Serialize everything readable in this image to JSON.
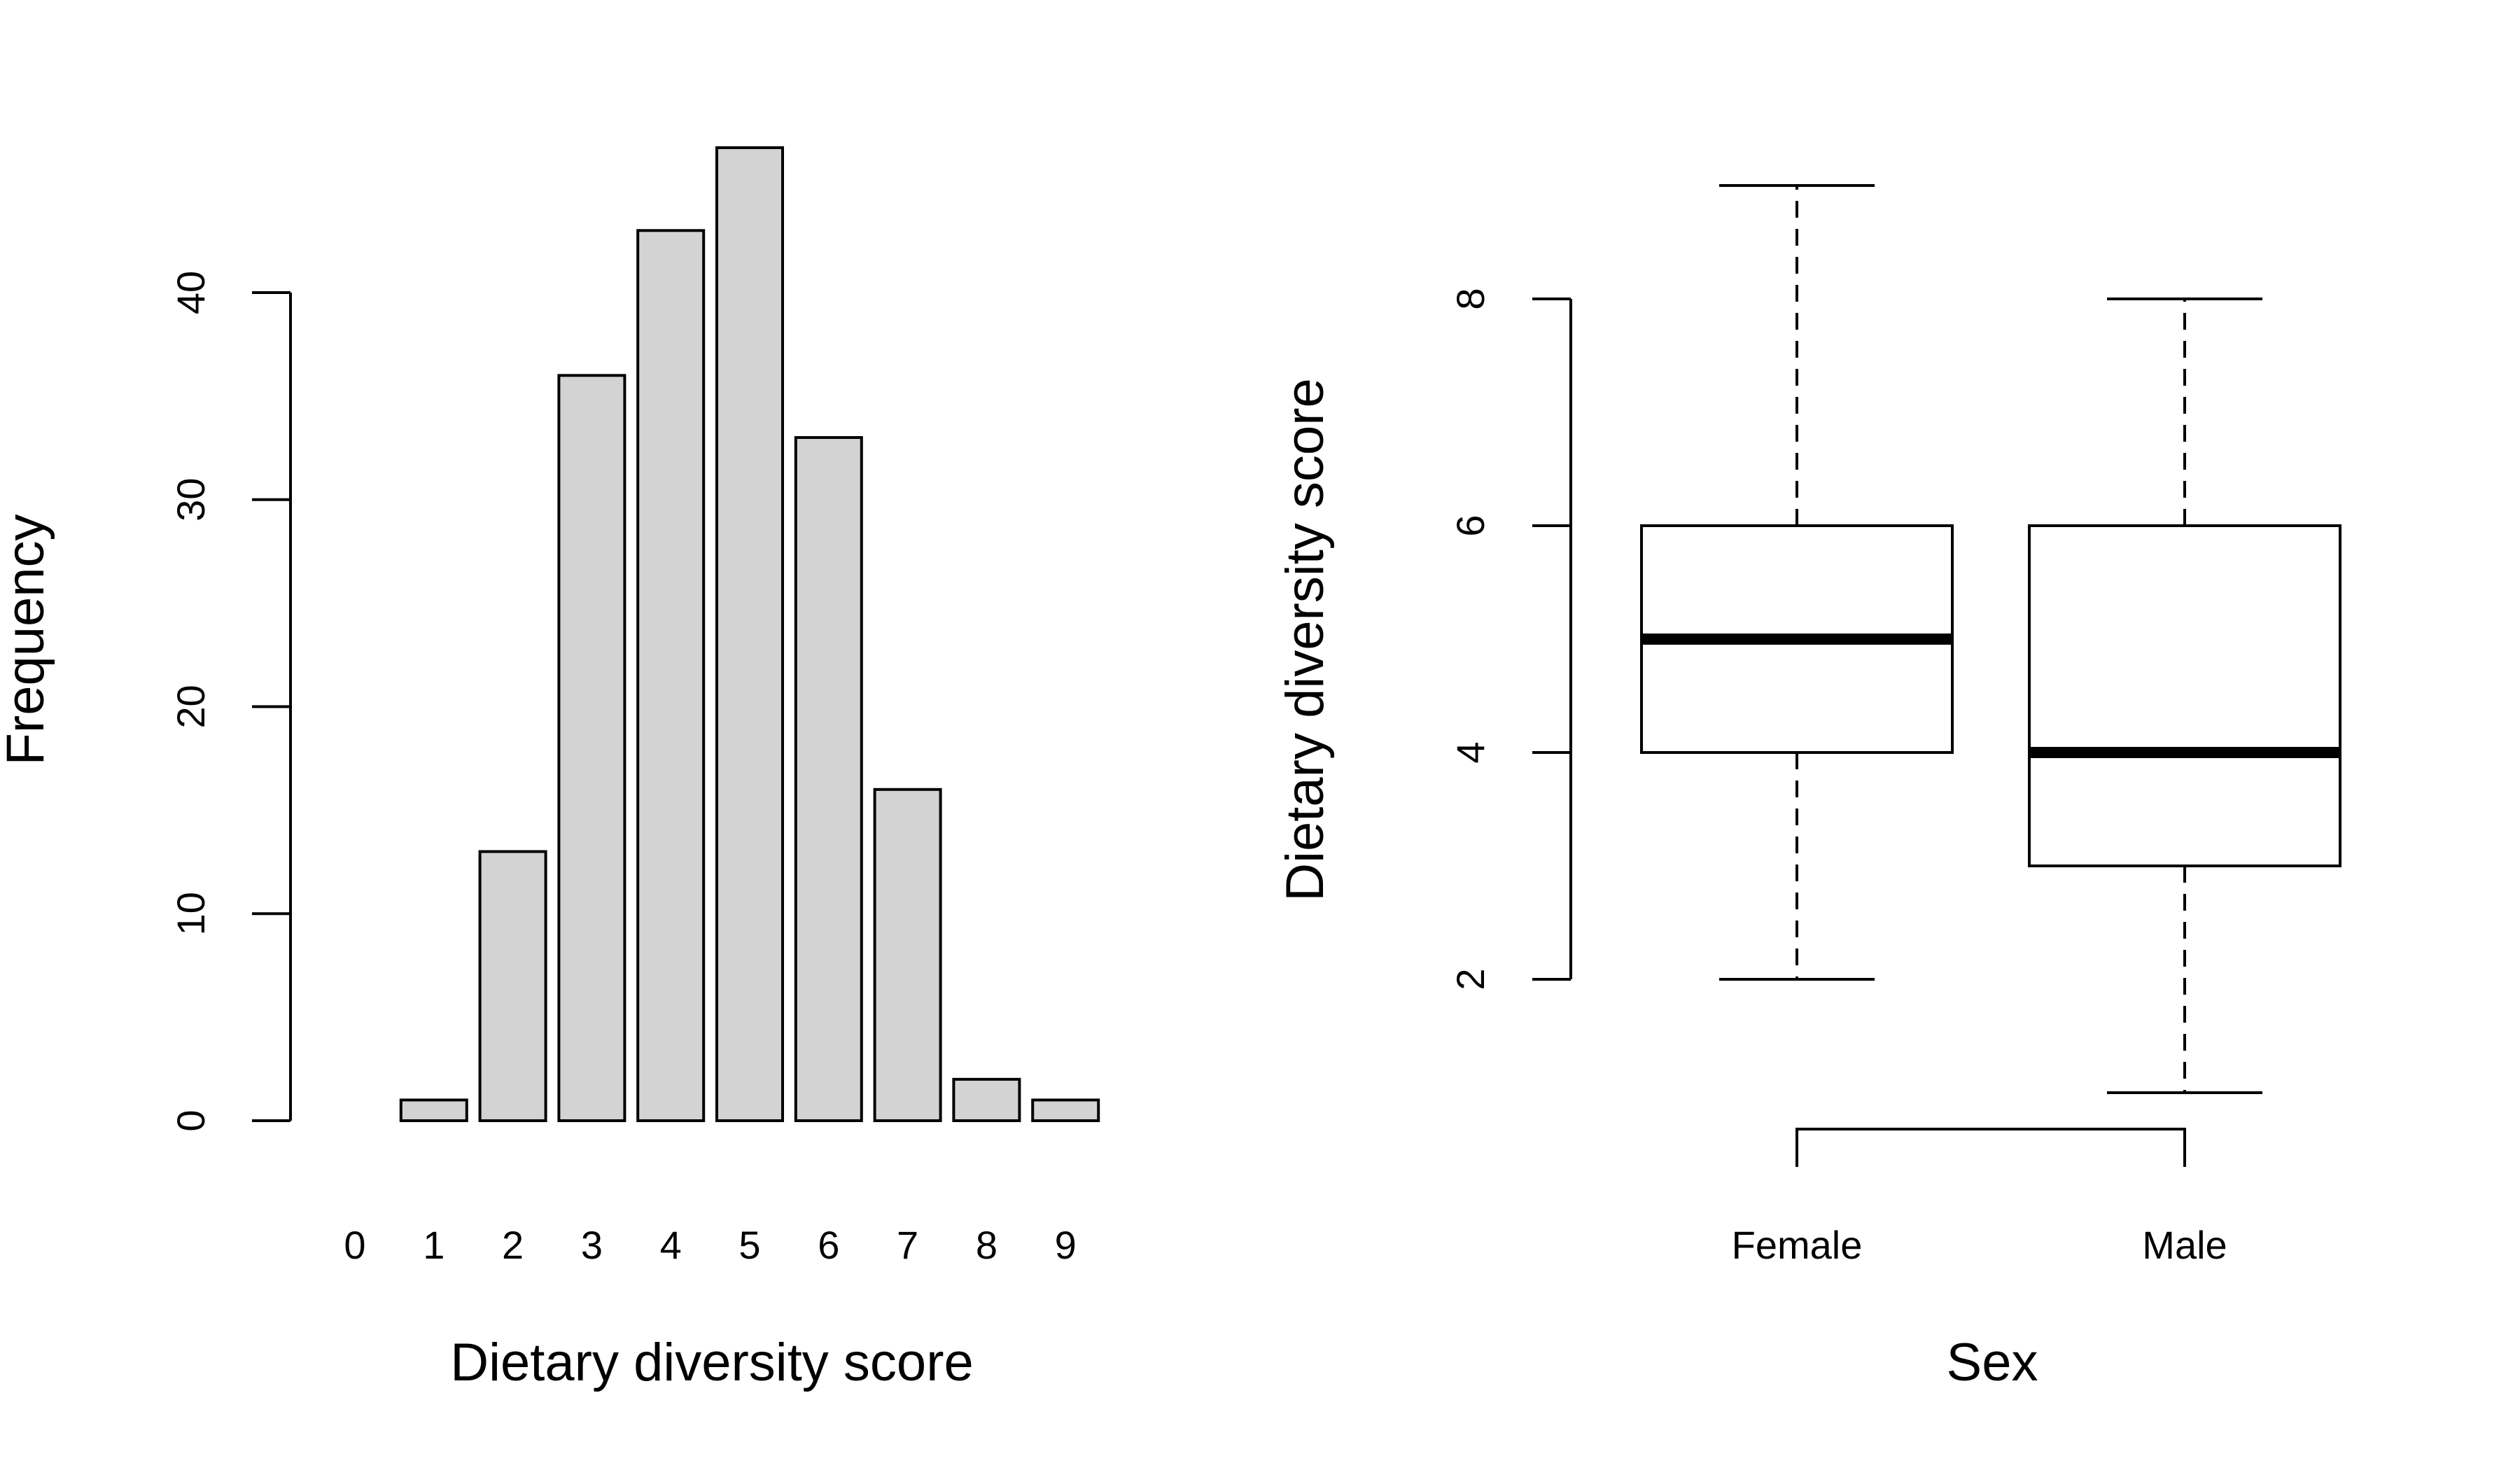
{
  "chart_data": [
    {
      "type": "bar",
      "xlabel": "Dietary diversity score",
      "ylabel": "Frequency",
      "categories": [
        "0",
        "1",
        "2",
        "3",
        "4",
        "5",
        "6",
        "7",
        "8",
        "9"
      ],
      "values": [
        0,
        1,
        13,
        36,
        43,
        47,
        33,
        16,
        2,
        1
      ],
      "yticks": [
        0,
        10,
        20,
        30,
        40
      ],
      "ylim": [
        0,
        47
      ],
      "bar_color": "#d3d3d3",
      "grid": false
    },
    {
      "type": "boxplot",
      "xlabel": "Sex",
      "ylabel": "Dietary diversity score",
      "categories": [
        "Female",
        "Male"
      ],
      "series": [
        {
          "category": "Female",
          "min": 2,
          "q1": 4,
          "median": 5,
          "q3": 6,
          "max": 9
        },
        {
          "category": "Male",
          "min": 1,
          "q1": 3,
          "median": 4,
          "q3": 6,
          "max": 8
        }
      ],
      "yticks": [
        2,
        4,
        6,
        8
      ],
      "ylim": [
        1,
        9
      ],
      "grid": false
    }
  ]
}
